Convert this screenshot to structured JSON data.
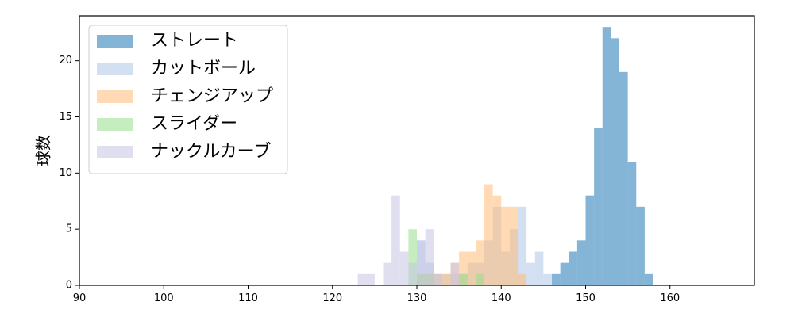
{
  "chart_data": {
    "type": "bar",
    "title": "",
    "xlabel": "",
    "ylabel": "球数",
    "xlim": [
      90,
      170
    ],
    "ylim": [
      0,
      24
    ],
    "xticks": [
      "90",
      "100",
      "110",
      "120",
      "130",
      "140",
      "150",
      "160"
    ],
    "yticks": [
      "0",
      "5",
      "10",
      "15",
      "20"
    ],
    "grid": false,
    "legend_position": "top-left",
    "bin_width": 1,
    "series": [
      {
        "name": "ストレート",
        "color": "#1f77b4",
        "bins": [
          {
            "x": 146,
            "count": 1
          },
          {
            "x": 147,
            "count": 2
          },
          {
            "x": 148,
            "count": 3
          },
          {
            "x": 149,
            "count": 4
          },
          {
            "x": 150,
            "count": 8
          },
          {
            "x": 151,
            "count": 14
          },
          {
            "x": 152,
            "count": 23
          },
          {
            "x": 153,
            "count": 22
          },
          {
            "x": 154,
            "count": 19
          },
          {
            "x": 155,
            "count": 11
          },
          {
            "x": 156,
            "count": 7
          },
          {
            "x": 157,
            "count": 1
          }
        ]
      },
      {
        "name": "カットボール",
        "color": "#aec7e8",
        "bins": [
          {
            "x": 130,
            "count": 4
          },
          {
            "x": 131,
            "count": 2
          },
          {
            "x": 132,
            "count": 1
          },
          {
            "x": 133,
            "count": 1
          },
          {
            "x": 134,
            "count": 1
          },
          {
            "x": 135,
            "count": 1
          },
          {
            "x": 136,
            "count": 2
          },
          {
            "x": 137,
            "count": 2
          },
          {
            "x": 138,
            "count": 4
          },
          {
            "x": 139,
            "count": 7
          },
          {
            "x": 140,
            "count": 3
          },
          {
            "x": 141,
            "count": 5
          },
          {
            "x": 142,
            "count": 7
          },
          {
            "x": 143,
            "count": 2
          },
          {
            "x": 144,
            "count": 3
          },
          {
            "x": 145,
            "count": 1
          }
        ]
      },
      {
        "name": "チェンジアップ",
        "color": "#ffbb78",
        "bins": [
          {
            "x": 130,
            "count": 1
          },
          {
            "x": 131,
            "count": 1
          },
          {
            "x": 132,
            "count": 1
          },
          {
            "x": 133,
            "count": 1
          },
          {
            "x": 134,
            "count": 2
          },
          {
            "x": 135,
            "count": 3
          },
          {
            "x": 136,
            "count": 3
          },
          {
            "x": 137,
            "count": 4
          },
          {
            "x": 138,
            "count": 9
          },
          {
            "x": 139,
            "count": 8
          },
          {
            "x": 140,
            "count": 7
          },
          {
            "x": 141,
            "count": 7
          },
          {
            "x": 142,
            "count": 1
          }
        ]
      },
      {
        "name": "スライダー",
        "color": "#98df8a",
        "bins": [
          {
            "x": 129,
            "count": 5
          },
          {
            "x": 130,
            "count": 1
          },
          {
            "x": 131,
            "count": 1
          },
          {
            "x": 135,
            "count": 1
          },
          {
            "x": 137,
            "count": 1
          }
        ]
      },
      {
        "name": "ナックルカーブ",
        "color": "#c5c5e3",
        "bins": [
          {
            "x": 123,
            "count": 1
          },
          {
            "x": 124,
            "count": 1
          },
          {
            "x": 126,
            "count": 2
          },
          {
            "x": 127,
            "count": 8
          },
          {
            "x": 128,
            "count": 3
          },
          {
            "x": 129,
            "count": 2
          },
          {
            "x": 130,
            "count": 4
          },
          {
            "x": 131,
            "count": 5
          },
          {
            "x": 132,
            "count": 1
          },
          {
            "x": 134,
            "count": 2
          }
        ]
      }
    ]
  }
}
